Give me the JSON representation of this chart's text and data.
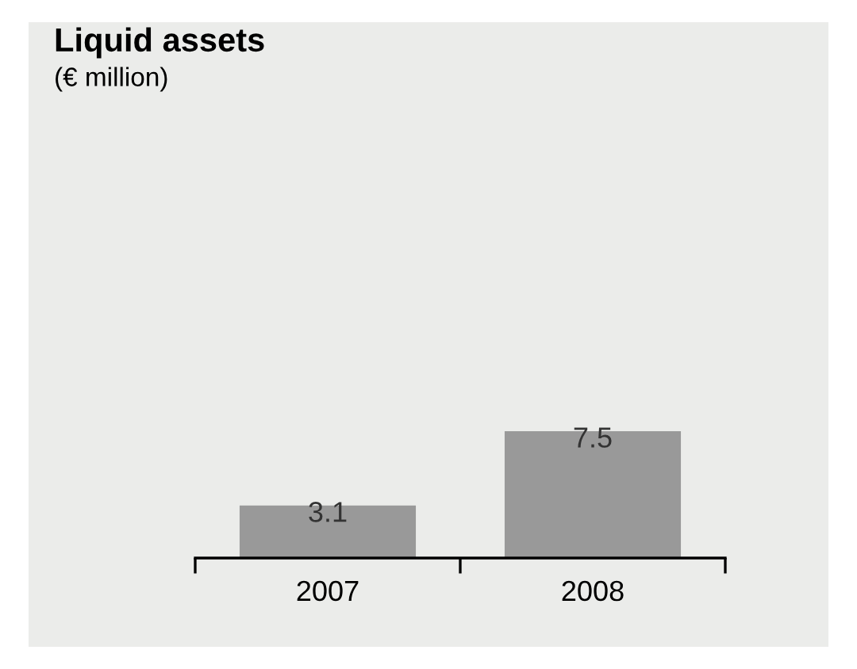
{
  "chart_data": {
    "type": "bar",
    "title": "Liquid assets",
    "subtitle": "(€ million)",
    "categories": [
      "2007",
      "2008"
    ],
    "values": [
      3.1,
      7.5
    ],
    "color": "#999999",
    "data_labels": true,
    "grid": false,
    "legend": false
  }
}
